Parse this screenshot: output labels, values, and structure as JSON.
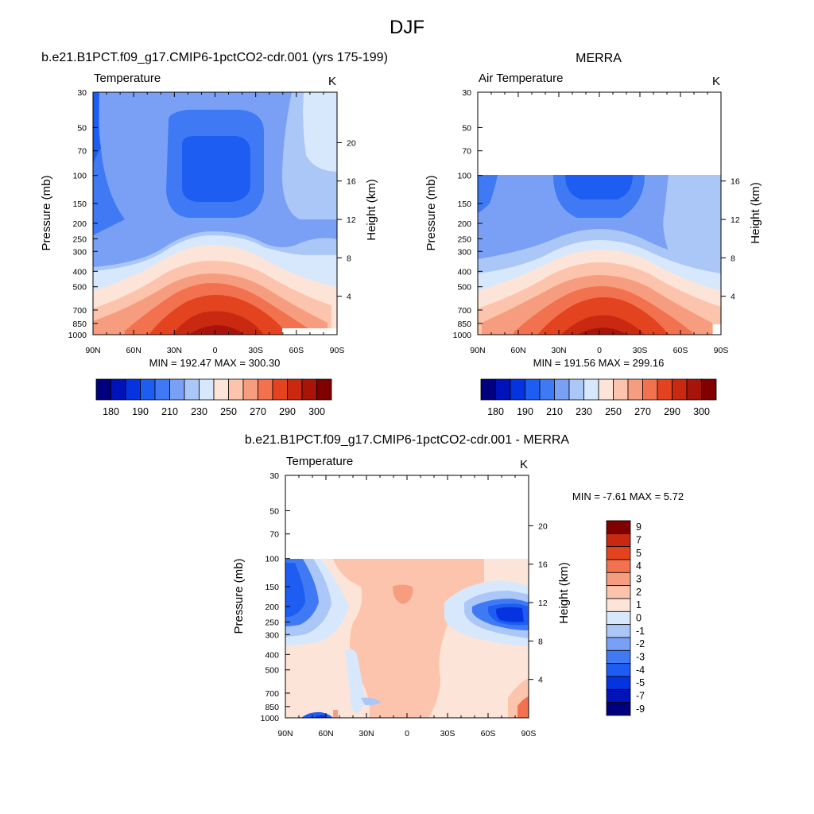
{
  "title": "DJF",
  "colors": {
    "temp_levels": [
      "#00007f",
      "#0012b9",
      "#0533e0",
      "#1d5df2",
      "#3f7af4",
      "#7aa0f5",
      "#abc7f7",
      "#d8e8fc",
      "#fde4d8",
      "#fcc4ad",
      "#f79d7f",
      "#f27250",
      "#e3431f",
      "#c82910",
      "#a81409",
      "#800000"
    ],
    "diff_levels": [
      "#00007f",
      "#0012b9",
      "#0533e0",
      "#1d5df2",
      "#3f7af4",
      "#7aa0f5",
      "#abc7f7",
      "#d8e8fc",
      "#fde4d8",
      "#fcc4ad",
      "#f79d7f",
      "#f27250",
      "#e3431f",
      "#c82910",
      "#800000"
    ]
  },
  "panels": [
    {
      "id": "model",
      "title": "b.e21.B1PCT.f09_g17.CMIP6-1pctCO2-cdr.001 (yrs 175-199)",
      "left_label": "Temperature",
      "right_label": "K",
      "ylabel": "Pressure (mb)",
      "y2label": "Height (km)",
      "minmax": "MIN = 192.47  MAX = 300.30"
    },
    {
      "id": "obs",
      "title": "MERRA",
      "left_label": "Air Temperature",
      "right_label": "K",
      "ylabel": "Pressure (mb)",
      "y2label": "Height (km)",
      "minmax": "MIN = 191.56  MAX = 299.16"
    },
    {
      "id": "diff",
      "title": "b.e21.B1PCT.f09_g17.CMIP6-1pctCO2-cdr.001 - MERRA",
      "left_label": "Temperature",
      "right_label": "K",
      "ylabel": "Pressure (mb)",
      "y2label": "Height (km)",
      "minmax": "MIN =  -7.61  MAX =   5.72"
    }
  ],
  "chart_data": [
    {
      "type": "heatmap",
      "panel": "model",
      "title": "b.e21.B1PCT.f09_g17.CMIP6-1pctCO2-cdr.001 (yrs 175-199)",
      "units": "K",
      "x_ticks": [
        "90N",
        "60N",
        "30N",
        "0",
        "30S",
        "60S",
        "90S"
      ],
      "x_values": [
        90,
        60,
        30,
        0,
        -30,
        -60,
        -90
      ],
      "y_ticks": [
        30,
        50,
        70,
        100,
        150,
        200,
        250,
        300,
        400,
        500,
        700,
        850,
        1000
      ],
      "y_scale": "log",
      "ylim": [
        30,
        1000
      ],
      "y2_ticks": [
        4,
        8,
        12,
        16,
        20
      ],
      "min": 192.47,
      "max": 300.3,
      "colorbar_labels": [
        180,
        190,
        210,
        230,
        250,
        270,
        290,
        300
      ]
    },
    {
      "type": "heatmap",
      "panel": "obs",
      "title": "MERRA",
      "units": "K",
      "x_ticks": [
        "90N",
        "60N",
        "30N",
        "0",
        "30S",
        "60S",
        "90S"
      ],
      "x_values": [
        90,
        60,
        30,
        0,
        -30,
        -60,
        -90
      ],
      "y_ticks": [
        30,
        50,
        70,
        100,
        150,
        200,
        250,
        300,
        400,
        500,
        700,
        850,
        1000
      ],
      "y_scale": "log",
      "ylim": [
        30,
        1000
      ],
      "data_top_pressure": 100,
      "y2_ticks": [
        4,
        8,
        12,
        16
      ],
      "min": 191.56,
      "max": 299.16,
      "colorbar_labels": [
        180,
        190,
        210,
        230,
        250,
        270,
        290,
        300
      ]
    },
    {
      "type": "heatmap",
      "panel": "diff",
      "title": "b.e21.B1PCT.f09_g17.CMIP6-1pctCO2-cdr.001 - MERRA",
      "units": "K",
      "x_ticks": [
        "90N",
        "60N",
        "30N",
        "0",
        "30S",
        "60S",
        "90S"
      ],
      "x_values": [
        90,
        60,
        30,
        0,
        -30,
        -60,
        -90
      ],
      "y_ticks": [
        30,
        50,
        70,
        100,
        150,
        200,
        250,
        300,
        400,
        500,
        700,
        850,
        1000
      ],
      "y_scale": "log",
      "ylim": [
        30,
        1000
      ],
      "data_top_pressure": 100,
      "y2_ticks": [
        4,
        8,
        12,
        16,
        20
      ],
      "min": -7.61,
      "max": 5.72,
      "colorbar_labels": [
        9,
        7,
        5,
        4,
        3,
        2,
        1,
        0,
        -1,
        -2,
        -3,
        -4,
        -5,
        -7,
        -9
      ]
    }
  ]
}
